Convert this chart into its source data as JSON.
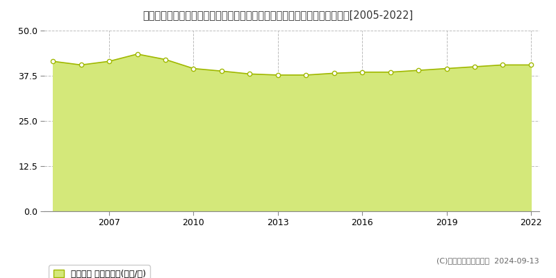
{
  "title": "東京都西多摩郡瑞穂町大字笥根ケ崎字狭山２９５番４　地価公示　地価推移[2005-2022]",
  "years": [
    2005,
    2006,
    2007,
    2008,
    2009,
    2010,
    2011,
    2012,
    2013,
    2014,
    2015,
    2016,
    2017,
    2018,
    2019,
    2020,
    2021,
    2022
  ],
  "values": [
    41.5,
    40.5,
    41.5,
    43.5,
    42.0,
    39.5,
    38.8,
    38.0,
    37.7,
    37.7,
    38.2,
    38.5,
    38.5,
    39.0,
    39.5,
    40.0,
    40.5,
    40.5
  ],
  "line_color": "#a0b800",
  "fill_color": "#d4e87a",
  "fill_alpha": 1.0,
  "marker_color": "white",
  "marker_edge_color": "#a0b800",
  "background_color": "#ffffff",
  "plot_bg_color": "#f8f8f0",
  "grid_color": "#bbbbbb",
  "ylim": [
    0,
    50
  ],
  "yticks": [
    0,
    12.5,
    25,
    37.5,
    50
  ],
  "xticks": [
    2007,
    2010,
    2013,
    2016,
    2019,
    2022
  ],
  "legend_label": "地価公示 平均坪単価(万円/坪)",
  "copyright_text": "(C)土地価格ドットコム  2024-09-13",
  "title_fontsize": 10.5,
  "axis_fontsize": 9,
  "legend_fontsize": 9
}
